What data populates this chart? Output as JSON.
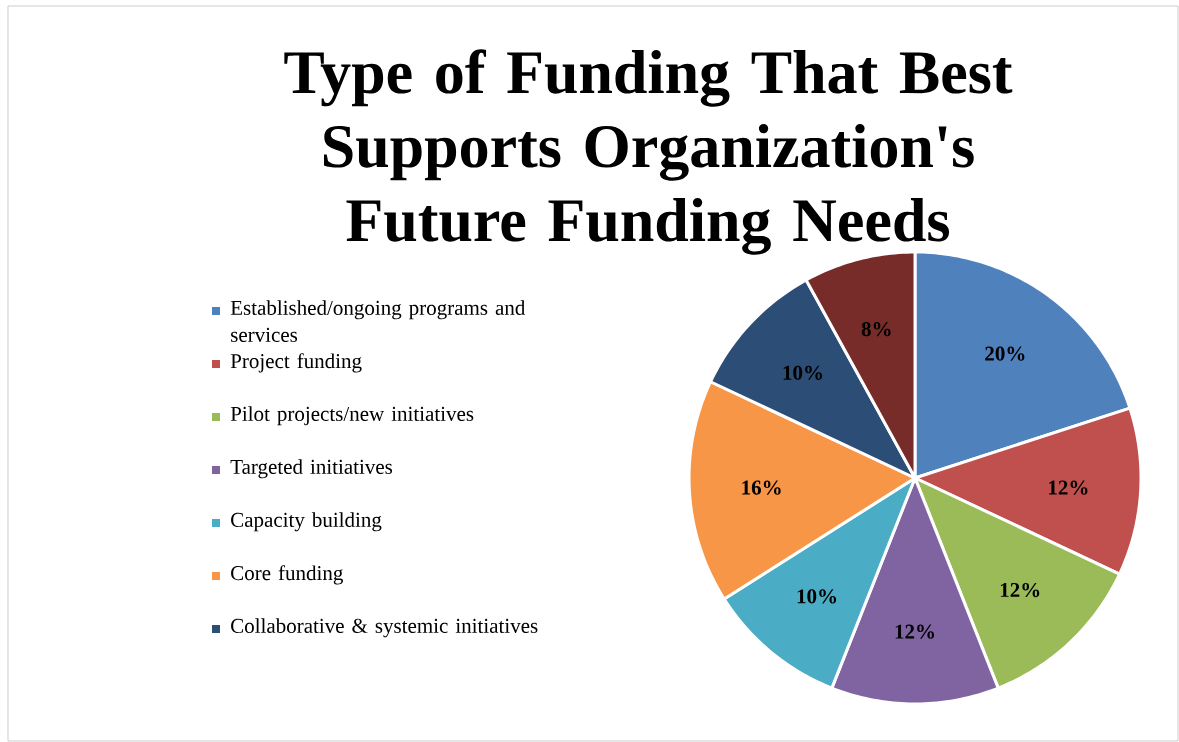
{
  "chart_data": {
    "type": "pie",
    "title": "Type of Funding That Best Supports Organization's Future Funding Needs",
    "categories": [
      "Established/ongoing programs and services",
      "Project funding",
      "Pilot projects/new initiatives",
      "Targeted initiatives",
      "Capacity building",
      "Core funding",
      "Collaborative & systemic initiatives",
      null
    ],
    "values": [
      20,
      12,
      12,
      12,
      10,
      16,
      10,
      8
    ],
    "value_labels": [
      "20%",
      "12%",
      "12%",
      "12%",
      "10%",
      "16%",
      "10%",
      "8%"
    ],
    "colors": [
      "#4f81bd",
      "#c0504d",
      "#9bbb59",
      "#8064a2",
      "#4bacc6",
      "#f79646",
      "#2c4d75",
      "#772c2a"
    ],
    "legend": "left"
  }
}
